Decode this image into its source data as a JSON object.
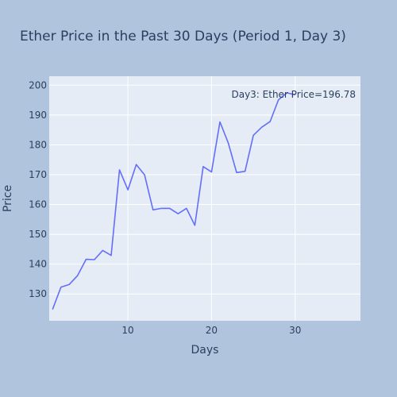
{
  "chart_data": {
    "type": "line",
    "title": "Ether Price in the Past 30 Days (Period 1, Day 3)",
    "xlabel": "Days",
    "ylabel": "Price",
    "xlim": [
      0.6,
      37.8
    ],
    "ylim": [
      121,
      203
    ],
    "x_ticks": [
      10,
      20,
      30
    ],
    "y_ticks": [
      130,
      140,
      150,
      160,
      170,
      180,
      190,
      200
    ],
    "grid": true,
    "annotation": "Day3: Ether Price=196.78",
    "series": [
      {
        "color": "#636efa",
        "x": [
          1,
          2,
          3,
          4,
          5,
          6,
          7,
          8,
          9,
          10,
          11,
          12,
          13,
          14,
          15,
          16,
          17,
          18,
          19,
          20,
          21,
          22,
          23,
          24,
          25,
          26,
          27,
          28,
          29,
          30
        ],
        "y": [
          124.8,
          132.3,
          133.2,
          136.2,
          141.6,
          141.5,
          144.6,
          142.9,
          171.6,
          164.9,
          173.4,
          169.9,
          158.2,
          158.7,
          158.7,
          156.9,
          158.7,
          153.0,
          172.7,
          170.9,
          187.7,
          180.6,
          170.7,
          171.1,
          183.2,
          185.9,
          187.8,
          195.1,
          197.4,
          196.8
        ]
      }
    ]
  }
}
